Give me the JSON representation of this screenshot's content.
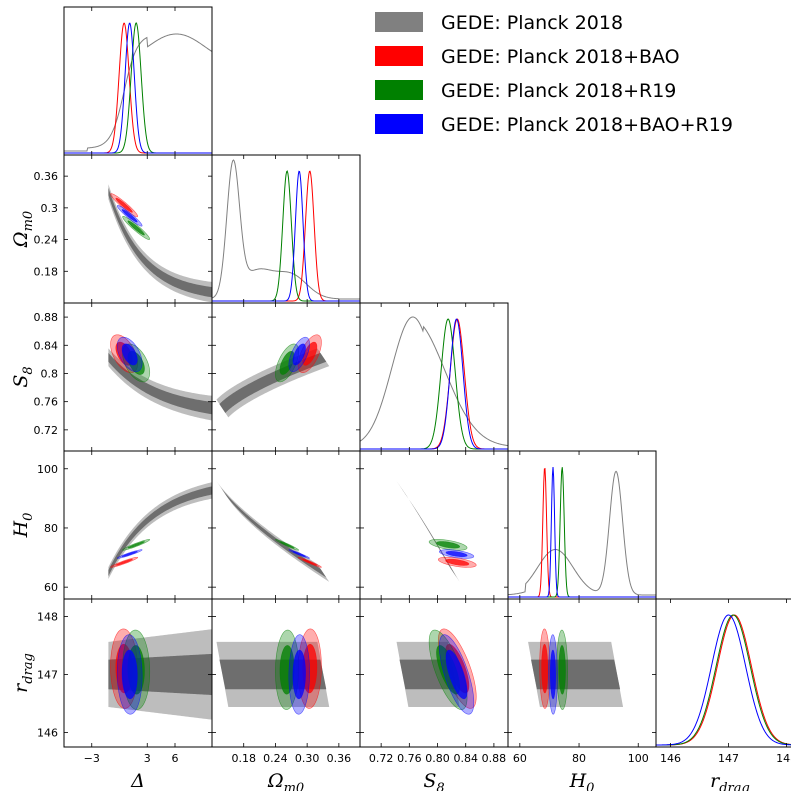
{
  "chart_data": {
    "type": "triangle-corner",
    "parameters": [
      {
        "key": "Delta",
        "label": "Δ",
        "sub": "",
        "range": [
          -6,
          10
        ],
        "ticks": [
          -3,
          3,
          6
        ],
        "tick_labels": [
          "−3",
          "3",
          "6"
        ]
      },
      {
        "key": "Omega_m0",
        "label": "Ω",
        "sub": "m0",
        "range": [
          0.12,
          0.4
        ],
        "ticks": [
          0.18,
          0.24,
          0.3,
          0.36
        ],
        "tick_labels": [
          "0.18",
          "0.24",
          "0.30",
          "0.36"
        ],
        "y_tick_labels": [
          "0.18",
          "0.24",
          "0.3",
          "0.36"
        ]
      },
      {
        "key": "S8",
        "label": "S",
        "sub": "8",
        "range": [
          0.69,
          0.9
        ],
        "ticks": [
          0.72,
          0.76,
          0.8,
          0.84,
          0.88
        ],
        "tick_labels": [
          "0.72",
          "0.76",
          "0.80",
          "0.84",
          "0.88"
        ],
        "y_tick_labels": [
          "0.72",
          "0.76",
          "0.8",
          "0.84",
          "0.88"
        ]
      },
      {
        "key": "H0",
        "label": "H",
        "sub": "0",
        "range": [
          56,
          106
        ],
        "ticks": [
          60,
          80,
          100
        ],
        "tick_labels": [
          "60",
          "80",
          "100"
        ]
      },
      {
        "key": "r_drag",
        "label": "r",
        "sub": "drag",
        "range": [
          145.75,
          148.3
        ],
        "ticks": [
          146,
          147,
          148
        ],
        "tick_labels": [
          "146",
          "147",
          "148"
        ]
      }
    ],
    "series": [
      {
        "name": "GEDE: Planck 2018",
        "color": "#808080",
        "fill": "#808080",
        "means": {
          "Delta": 6,
          "Omega_m0": 0.2,
          "S8": 0.78,
          "H0": 86,
          "r_drag": 147.05
        },
        "peaks_1d": {
          "Delta": "broad",
          "Omega_m0": 0.16,
          "S8": 0.765,
          "H0": 92,
          "r_drag": 147.05
        }
      },
      {
        "name": "GEDE: Planck 2018+BAO",
        "color": "#ff0000",
        "fill": "#ff0000",
        "means": {
          "Delta": 0.5,
          "Omega_m0": 0.305,
          "S8": 0.828,
          "H0": 68.4,
          "r_drag": 147.1
        }
      },
      {
        "name": "GEDE: Planck 2018+R19",
        "color": "#008000",
        "fill": "#008000",
        "means": {
          "Delta": 1.8,
          "Omega_m0": 0.262,
          "S8": 0.815,
          "H0": 74.3,
          "r_drag": 147.08
        }
      },
      {
        "name": "GEDE: Planck 2018+BAO+R19",
        "color": "#0000ff",
        "fill": "#0000ff",
        "means": {
          "Delta": 1.1,
          "Omega_m0": 0.285,
          "S8": 0.827,
          "H0": 71.2,
          "r_drag": 147.0
        }
      }
    ],
    "legend_position": "top-right",
    "grid": false
  }
}
